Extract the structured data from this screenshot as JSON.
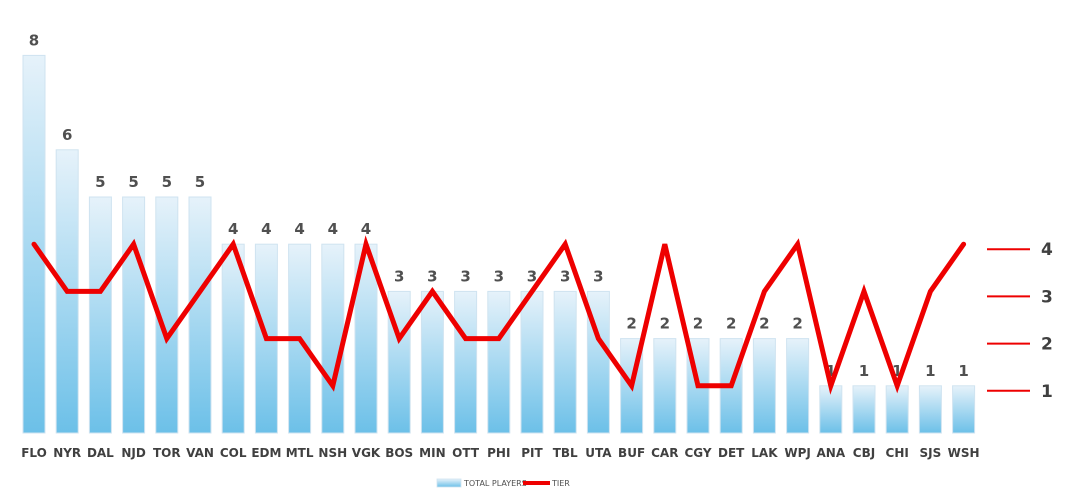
{
  "chart_data": {
    "type": "bar",
    "categories": [
      "FLO",
      "NYR",
      "DAL",
      "NJD",
      "TOR",
      "VAN",
      "COL",
      "EDM",
      "MTL",
      "NSH",
      "VGK",
      "BOS",
      "MIN",
      "OTT",
      "PHI",
      "PIT",
      "TBL",
      "UTA",
      "BUF",
      "CAR",
      "CGY",
      "DET",
      "LAK",
      "WPJ",
      "ANA",
      "CBJ",
      "CHI",
      "SJS",
      "WSH"
    ],
    "series": [
      {
        "name": "TOTAL PLAYERS",
        "type": "bar",
        "values": [
          8,
          6,
          5,
          5,
          5,
          5,
          4,
          4,
          4,
          4,
          4,
          3,
          3,
          3,
          3,
          3,
          3,
          3,
          2,
          2,
          2,
          2,
          2,
          2,
          1,
          1,
          1,
          1,
          1
        ]
      },
      {
        "name": "TIER",
        "type": "line",
        "values": [
          4,
          3,
          3,
          4,
          2,
          3,
          4,
          2,
          2,
          1,
          4,
          2,
          3,
          2,
          2,
          3,
          4,
          2,
          1,
          4,
          1,
          1,
          3,
          4,
          1,
          3,
          1,
          3,
          4
        ]
      }
    ],
    "tier_ticks": [
      "1",
      "2",
      "3",
      "4"
    ],
    "ylim": [
      0,
      8
    ],
    "legend_position": "bottom-center",
    "colors": {
      "bar_top": "#e6f2fa",
      "bar_bottom": "#6cc0e8",
      "bar_border": "#cfe3f0",
      "line": "#ee0000"
    }
  }
}
